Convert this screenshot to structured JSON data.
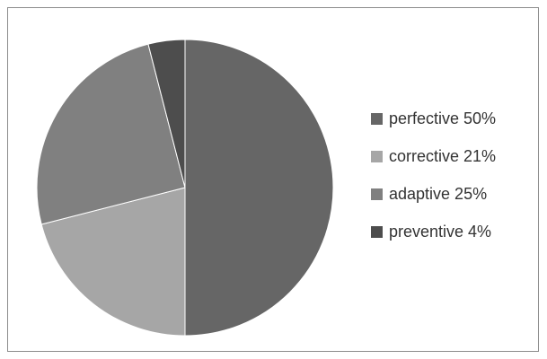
{
  "chart_data": {
    "type": "pie",
    "title": "",
    "categories": [
      "perfective",
      "corrective",
      "adaptive",
      "preventive"
    ],
    "values": [
      50,
      21,
      25,
      4
    ],
    "legend_labels": [
      "perfective 50%",
      "corrective 21%",
      "adaptive 25%",
      "preventive 4%"
    ],
    "colors": [
      "#666666",
      "#a6a6a6",
      "#808080",
      "#4d4d4d"
    ],
    "legend_position": "right",
    "start_angle_deg": 0,
    "direction": "clockwise"
  }
}
